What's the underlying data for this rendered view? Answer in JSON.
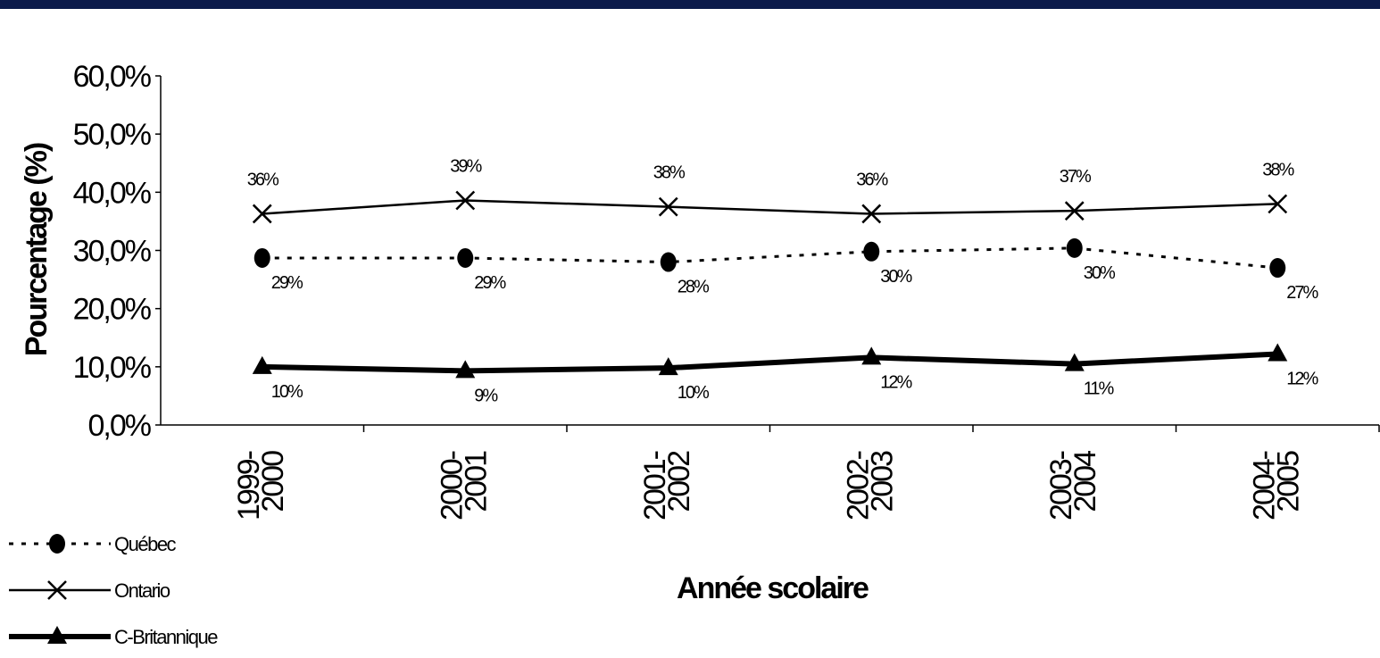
{
  "chart_data": {
    "type": "line",
    "categories": [
      "1999-\n2000",
      "2000-\n2001",
      "2001-\n2002",
      "2002-\n2003",
      "2003-\n2004",
      "2004-\n2005"
    ],
    "category_lines": [
      [
        "1999-",
        "2000"
      ],
      [
        "2000-",
        "2001"
      ],
      [
        "2001-",
        "2002"
      ],
      [
        "2002-",
        "2003"
      ],
      [
        "2003-",
        "2004"
      ],
      [
        "2004-",
        "2005"
      ]
    ],
    "series": [
      {
        "name": "Québec",
        "values": [
          28.7,
          28.7,
          28.0,
          29.8,
          30.4,
          27.0
        ],
        "labels": [
          "29%",
          "29%",
          "28%",
          "30%",
          "30%",
          "27%"
        ],
        "style": "dotted",
        "marker": "circle",
        "label_position": "below-right"
      },
      {
        "name": "Ontario",
        "values": [
          36.3,
          38.6,
          37.5,
          36.3,
          36.8,
          38.0
        ],
        "labels": [
          "36%",
          "39%",
          "38%",
          "36%",
          "37%",
          "38%"
        ],
        "style": "solid",
        "marker": "x",
        "label_position": "above"
      },
      {
        "name": "C-Britannique",
        "values": [
          10.0,
          9.3,
          9.8,
          11.6,
          10.5,
          12.2
        ],
        "labels": [
          "10%",
          "9%",
          "10%",
          "12%",
          "11%",
          "12%"
        ],
        "style": "thick",
        "marker": "triangle",
        "label_position": "below-right"
      }
    ],
    "yticks": [
      "0,0%",
      "10,0%",
      "20,0%",
      "30,0%",
      "40,0%",
      "50,0%",
      "60,0%"
    ],
    "ylim": [
      0,
      60
    ],
    "xlabel": "Année scolaire",
    "ylabel": "Pourcentage (%)",
    "grid": false,
    "legend_position": "bottom-left",
    "colors": {
      "line": "#000000",
      "top_bar": "#0b1a4a"
    }
  }
}
